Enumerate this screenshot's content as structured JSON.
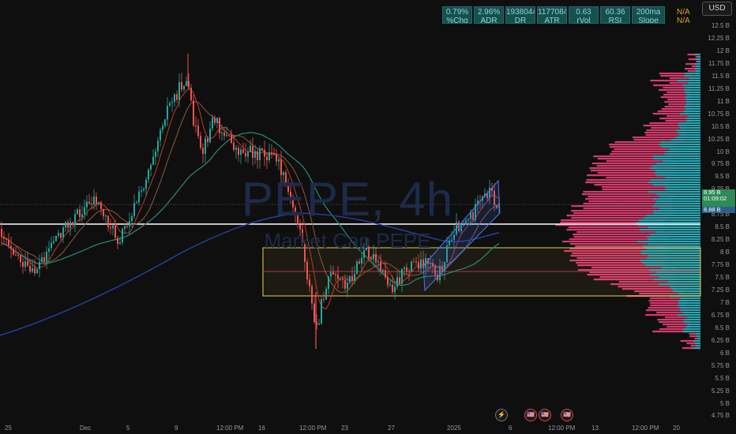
{
  "header": {
    "currency": "USD",
    "stats": [
      {
        "value": "0.79%",
        "label": "%Chg"
      },
      {
        "value": "2.96%",
        "label": "ADR"
      },
      {
        "value": "1938044",
        "label": "DR"
      },
      {
        "value": "1177084",
        "label": "ATR"
      },
      {
        "value": "0.63",
        "label": "rVol"
      },
      {
        "value": "60.36",
        "label": "RSI"
      },
      {
        "value": "200ma",
        "label": "Slope"
      }
    ],
    "na_top": "N/A",
    "na_bottom": "N/A"
  },
  "watermark": {
    "title": "PEPE, 4h",
    "subtitle": "Market Cap PEPE"
  },
  "price_axis": {
    "labels": [
      "12.5 B",
      "12.25 B",
      "12 B",
      "11.75 B",
      "11.5 B",
      "11.25 B",
      "11 B",
      "10.75 B",
      "10.5 B",
      "10.25 B",
      "10 B",
      "9.75 B",
      "9.5 B",
      "9.25 B",
      "9 B",
      "8.75 B",
      "8.5 B",
      "8.25 B",
      "8 B",
      "7.75 B",
      "7.5 B",
      "7.25 B",
      "7 B",
      "6.75 B",
      "6.5 B",
      "6.25 B",
      "6 B",
      "5.75 B",
      "5.5 B",
      "5.25 B",
      "5 B",
      "4.75 B"
    ],
    "last_price": "8.95 B",
    "countdown": "01:09:02",
    "prev_price": "8.88 B"
  },
  "time_axis": {
    "labels": [
      "25",
      "Dec",
      "5",
      "9",
      "12:00 PM",
      "16",
      "12:00 PM",
      "23",
      "27",
      "2025",
      "6",
      "12:00 PM",
      "13",
      "12:00 PM",
      "20"
    ]
  },
  "events": {
    "bolt": "⚡",
    "flag": "🇺🇸"
  },
  "colors": {
    "up": "#26a69a",
    "down": "#ef5350",
    "profile_up": "#2aa7b3",
    "profile_down": "#d63a6c",
    "zone": "#e6d250",
    "channel": "#4a7ae0",
    "white_line": "#ffffff"
  }
}
